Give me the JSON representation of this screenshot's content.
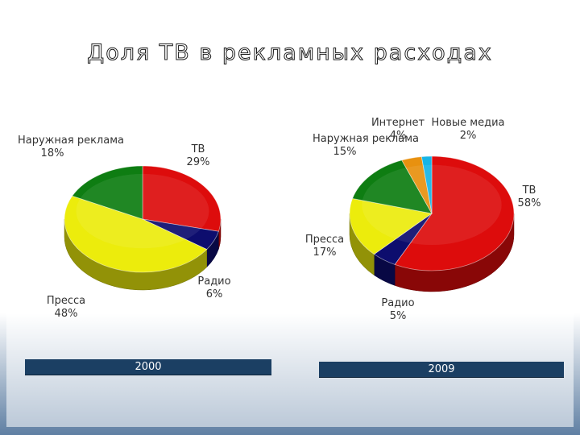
{
  "title": "Доля ТВ в рекламных расходах",
  "colors": {
    "tv": "#dd0c0c",
    "radio": "#0d0d6e",
    "press": "#ecec0c",
    "outdoor": "#0e7d12",
    "internet": "#e8910f",
    "new_media": "#17b5e6"
  },
  "chart_data": [
    {
      "type": "pie",
      "title": "2000",
      "categories": [
        "ТВ",
        "Радио",
        "Пресса",
        "Наружная реклама"
      ],
      "values": [
        29,
        6,
        48,
        18
      ],
      "labels": [
        {
          "name": "ТВ",
          "value": "29%"
        },
        {
          "name": "Радио",
          "value": "6%"
        },
        {
          "name": "Пресса",
          "value": "48%"
        },
        {
          "name": "Наружная реклама",
          "value": "18%"
        }
      ]
    },
    {
      "type": "pie",
      "title": "2009",
      "categories": [
        "ТВ",
        "Радио",
        "Пресса",
        "Наружная реклама",
        "Интернет",
        "Новые медиа"
      ],
      "values": [
        58,
        5,
        17,
        15,
        4,
        2
      ],
      "labels": [
        {
          "name": "ТВ",
          "value": "58%"
        },
        {
          "name": "Радио",
          "value": "5%"
        },
        {
          "name": "Пресса",
          "value": "17%"
        },
        {
          "name": "Наружная реклама",
          "value": "15%"
        },
        {
          "name": "Интернет",
          "value": "4%"
        },
        {
          "name": "Новые медиа",
          "value": "2%"
        }
      ]
    }
  ]
}
